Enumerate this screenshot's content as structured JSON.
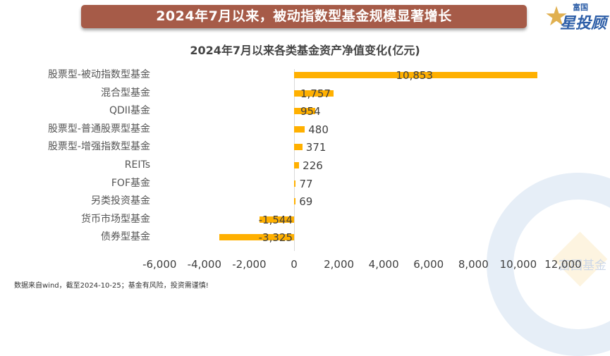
{
  "banner": {
    "title": "2024年7月以来，被动指数型基金规模显著增长"
  },
  "logo": {
    "top_text": "富国",
    "main_text": "星投顾"
  },
  "watermark": {
    "text": "富国基金"
  },
  "footnote": "数据来自wind，截至2024-10-25；基金有风险，投资需谨慎!",
  "colors": {
    "banner": "#a65b48",
    "bar": "#ffb000",
    "logo_blue": "#2e5fa8",
    "logo_gold": "#e0b050"
  },
  "chart_data": {
    "type": "bar",
    "orientation": "horizontal",
    "title": "2024年7月以来各类基金资产净值变化(亿元)",
    "categories": [
      "股票型-被动指数型基金",
      "混合型基金",
      "QDII基金",
      "股票型-普通股票型基金",
      "股票型-增强指数型基金",
      "REITs",
      "FOF基金",
      "另类投资基金",
      "货币市场型基金",
      "债券型基金"
    ],
    "values": [
      10853,
      1757,
      954,
      480,
      371,
      226,
      77,
      69,
      -1544,
      -3325
    ],
    "value_labels": [
      "10,853",
      "1,757",
      "954",
      "480",
      "371",
      "226",
      "77",
      "69",
      "-1,544",
      "-3,325"
    ],
    "xlabel": "",
    "ylabel": "",
    "xlim": [
      -6000,
      12000
    ],
    "x_ticks": [
      "-6,000",
      "-4,000",
      "-2,000",
      "0",
      "2,000",
      "4,000",
      "6,000",
      "8,000",
      "10,000",
      "12,000"
    ],
    "grid": false,
    "legend": "none"
  }
}
